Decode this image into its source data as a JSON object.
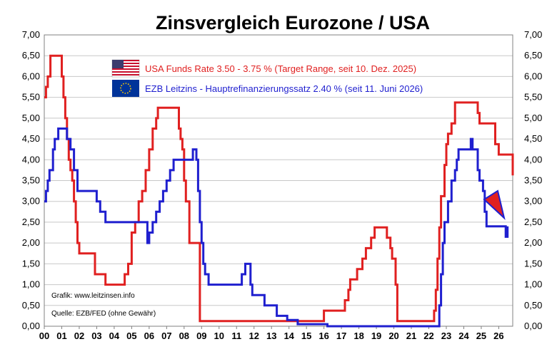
{
  "chart_data": {
    "type": "line",
    "title": "Zinsvergleich Eurozone / USA",
    "xlabel": "",
    "ylabel": "",
    "ylim": [
      0,
      7
    ],
    "xlim": [
      2000,
      2026.8
    ],
    "grid": true,
    "legend_position": "top-center",
    "y_ticks": [
      "0,00",
      "0,50",
      "1,00",
      "1,50",
      "2,00",
      "2,50",
      "3,00",
      "3,50",
      "4,00",
      "4,50",
      "5,00",
      "5,50",
      "6,00",
      "6,50",
      "7,00"
    ],
    "x_ticks": [
      "00",
      "01",
      "02",
      "03",
      "04",
      "05",
      "06",
      "07",
      "08",
      "09",
      "10",
      "11",
      "12",
      "13",
      "14",
      "15",
      "16",
      "17",
      "18",
      "19",
      "20",
      "21",
      "22",
      "23",
      "24",
      "25",
      "26"
    ],
    "series": [
      {
        "name": "USA Funds Rate 3.50 - 3.75 % (Target Range, seit 10. Dez. 2025)",
        "color": "#e02020",
        "x": [
          2000.0,
          2000.1,
          2000.2,
          2000.35,
          2000.45,
          2001.0,
          2001.1,
          2001.2,
          2001.3,
          2001.4,
          2001.5,
          2001.6,
          2001.7,
          2001.8,
          2001.9,
          2002.0,
          2002.9,
          2003.5,
          2004.5,
          2004.6,
          2004.8,
          2005.0,
          2005.2,
          2005.4,
          2005.6,
          2005.8,
          2006.0,
          2006.2,
          2006.4,
          2006.5,
          2007.6,
          2007.7,
          2007.8,
          2007.9,
          2008.0,
          2008.1,
          2008.3,
          2008.9,
          2015.9,
          2016.0,
          2016.9,
          2017.2,
          2017.4,
          2017.5,
          2017.9,
          2018.2,
          2018.4,
          2018.7,
          2018.9,
          2019.5,
          2019.6,
          2019.8,
          2019.9,
          2020.1,
          2020.2,
          2022.2,
          2022.3,
          2022.4,
          2022.5,
          2022.6,
          2022.7,
          2022.9,
          2023.0,
          2023.1,
          2023.3,
          2023.5,
          2024.7,
          2024.8,
          2024.9,
          2025.8,
          2026.0,
          2026.8
        ],
        "y": [
          5.5,
          5.75,
          6.0,
          6.5,
          6.5,
          6.0,
          5.5,
          5.0,
          4.5,
          4.0,
          3.75,
          3.5,
          3.0,
          2.5,
          2.0,
          1.75,
          1.25,
          1.0,
          1.0,
          1.25,
          1.5,
          2.25,
          2.5,
          3.0,
          3.25,
          3.75,
          4.25,
          4.75,
          5.0,
          5.25,
          5.25,
          4.75,
          4.5,
          4.25,
          3.5,
          3.0,
          2.0,
          0.125,
          0.125,
          0.375,
          0.375,
          0.625,
          0.875,
          1.125,
          1.375,
          1.625,
          1.875,
          2.125,
          2.375,
          2.375,
          2.125,
          1.875,
          1.625,
          1.0,
          0.125,
          0.125,
          0.375,
          0.875,
          1.625,
          2.375,
          3.125,
          3.875,
          4.375,
          4.625,
          4.875,
          5.375,
          5.375,
          5.125,
          4.875,
          4.375,
          4.125,
          3.625
        ]
      },
      {
        "name": "EZB Leitzins - Hauptrefinanzierungssatz 2.40 % (seit 11. Juni 2026)",
        "color": "#1f1fcf",
        "x": [
          2000.0,
          2000.1,
          2000.2,
          2000.3,
          2000.5,
          2000.6,
          2000.8,
          2001.3,
          2001.5,
          2001.7,
          2001.9,
          2002.0,
          2003.0,
          2003.2,
          2003.5,
          2005.9,
          2006.0,
          2006.2,
          2006.4,
          2006.6,
          2006.8,
          2007.0,
          2007.2,
          2007.4,
          2008.5,
          2008.7,
          2008.8,
          2008.9,
          2009.0,
          2009.1,
          2009.2,
          2009.4,
          2011.3,
          2011.5,
          2011.8,
          2011.9,
          2012.6,
          2013.3,
          2013.9,
          2014.5,
          2014.8,
          2016.2,
          2022.6,
          2022.7,
          2022.8,
          2022.9,
          2023.1,
          2023.3,
          2023.5,
          2023.6,
          2023.7,
          2024.4,
          2024.5,
          2024.8,
          2024.9,
          2025.1,
          2025.2,
          2025.3,
          2026.4,
          2026.5
        ],
        "y": [
          3.0,
          3.25,
          3.5,
          3.75,
          4.25,
          4.5,
          4.75,
          4.5,
          4.25,
          3.75,
          3.25,
          3.25,
          3.0,
          2.75,
          2.5,
          2.0,
          2.25,
          2.5,
          2.75,
          3.0,
          3.25,
          3.5,
          3.75,
          4.0,
          4.25,
          4.0,
          3.25,
          2.5,
          2.0,
          1.5,
          1.25,
          1.0,
          1.25,
          1.5,
          1.0,
          0.75,
          0.5,
          0.25,
          0.15,
          0.05,
          0.05,
          0.0,
          0.5,
          1.25,
          2.0,
          2.5,
          3.0,
          3.5,
          3.75,
          4.0,
          4.25,
          4.5,
          4.25,
          3.75,
          3.5,
          3.25,
          2.75,
          2.4,
          2.15,
          2.4
        ]
      }
    ]
  },
  "legend": [
    {
      "label": "USA Funds Rate 3.50 - 3.75 % (Target Range, seit 10. Dez. 2025)",
      "color": "#e02020",
      "flag": "us-flag-icon"
    },
    {
      "label": "EZB Leitzins - Hauptrefinanzierungssatz  2.40 % (seit 11. Juni 2026)",
      "color": "#1f1fcf",
      "flag": "eu-flag-icon"
    }
  ],
  "notes": {
    "credit": "Grafik: www.leitzinsen.info",
    "source": "Quelle: EZB/FED (ohne Gewähr)"
  },
  "annotation_arrow_color": "#1f1fcf"
}
